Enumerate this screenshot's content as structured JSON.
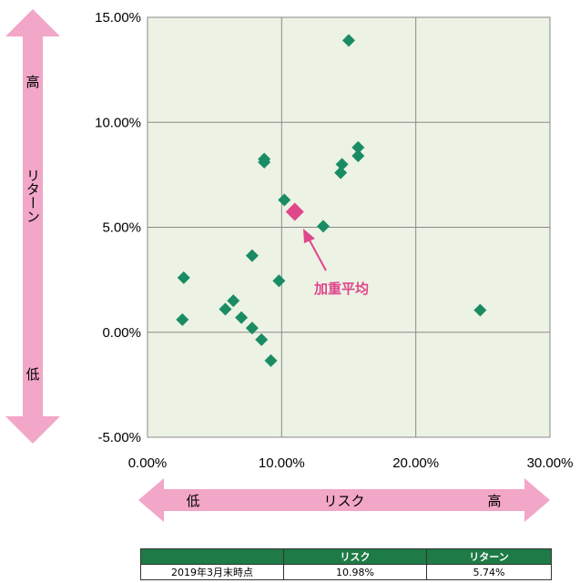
{
  "chart_data": {
    "type": "scatter",
    "x_axis": {
      "min": 0,
      "max": 30,
      "ticks": [
        "0.00%",
        "10.00%",
        "20.00%",
        "30.00%"
      ],
      "tick_values": [
        0,
        10,
        20,
        30
      ]
    },
    "y_axis": {
      "min": -5,
      "max": 15,
      "ticks": [
        "15.00%",
        "10.00%",
        "5.00%",
        "0.00%",
        "-5.00%"
      ],
      "tick_values": [
        15,
        10,
        5,
        0,
        -5
      ]
    },
    "grid": true,
    "x_arrow": {
      "low": "低",
      "label": "リスク",
      "high": "高"
    },
    "y_arrow": {
      "high": "高",
      "label": "リターン",
      "low": "低"
    },
    "points": [
      {
        "x": 15.0,
        "y": 13.9
      },
      {
        "x": 8.7,
        "y": 8.25
      },
      {
        "x": 8.7,
        "y": 8.1
      },
      {
        "x": 15.7,
        "y": 8.8
      },
      {
        "x": 15.7,
        "y": 8.4
      },
      {
        "x": 14.5,
        "y": 8.0
      },
      {
        "x": 14.4,
        "y": 7.6
      },
      {
        "x": 10.2,
        "y": 6.3
      },
      {
        "x": 13.1,
        "y": 5.05
      },
      {
        "x": 7.8,
        "y": 3.65
      },
      {
        "x": 2.7,
        "y": 2.6
      },
      {
        "x": 9.8,
        "y": 2.45
      },
      {
        "x": 6.4,
        "y": 1.5
      },
      {
        "x": 5.8,
        "y": 1.1
      },
      {
        "x": 7.0,
        "y": 0.7
      },
      {
        "x": 2.6,
        "y": 0.6
      },
      {
        "x": 7.8,
        "y": 0.2
      },
      {
        "x": 8.5,
        "y": -0.35
      },
      {
        "x": 9.2,
        "y": -1.35
      },
      {
        "x": 24.8,
        "y": 1.05
      }
    ],
    "point_color": "#1a8c63",
    "weighted_average": {
      "x": 10.98,
      "y": 5.74,
      "label": "加重平均",
      "color": "#e0468c"
    }
  },
  "arrow_color": "#f2a6c8",
  "table": {
    "header": [
      "",
      "リスク",
      "リターン"
    ],
    "row": [
      "2019年3月末時点",
      "10.98%",
      "5.74%"
    ]
  }
}
